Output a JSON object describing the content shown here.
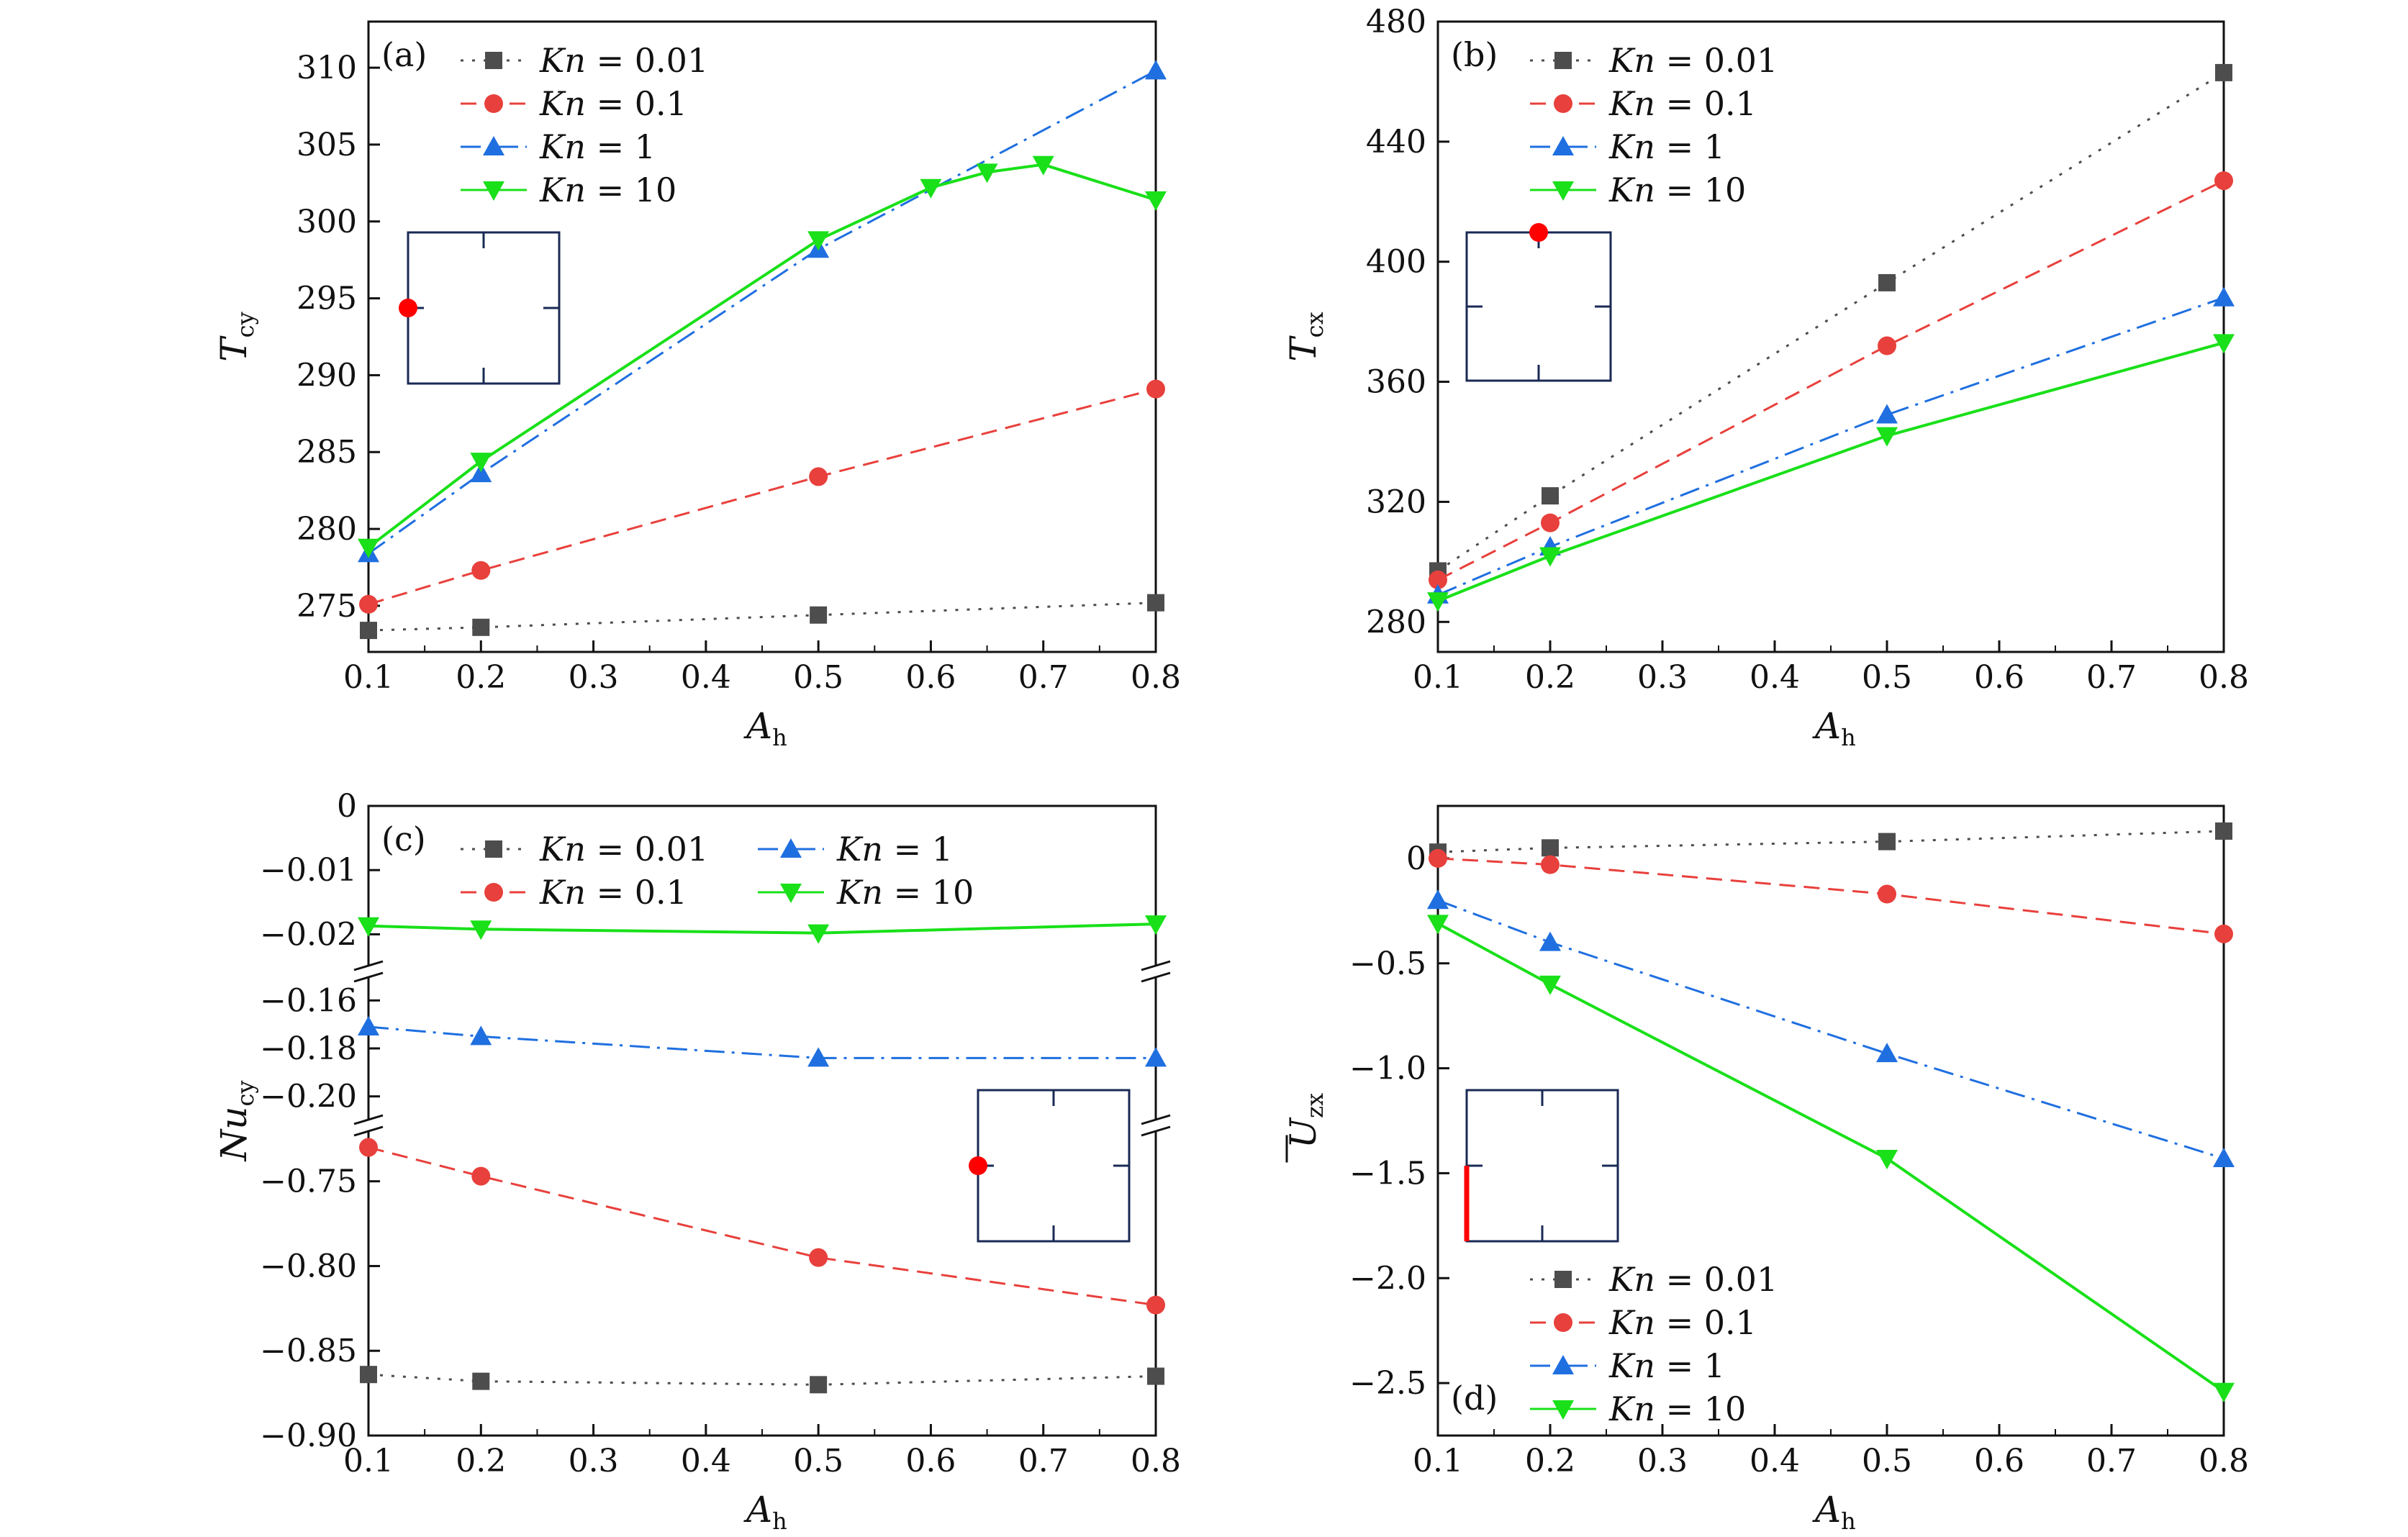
{
  "colors": {
    "kn001": "#4d4d4d",
    "kn01": "#e8403c",
    "kn1": "#1f6fe0",
    "kn10": "#19e019",
    "inset_frame": "#1a2a55",
    "inset_marker": "#ff0000"
  },
  "chart_data": [
    {
      "id": "a",
      "type": "line",
      "panel_label": "(a)",
      "xlabel": "A",
      "xlabel_sub": "h",
      "ylabel": "T",
      "ylabel_sub": "cy",
      "xlim": [
        0.1,
        0.8
      ],
      "ylim": [
        272,
        313
      ],
      "xticks": [
        0.1,
        0.2,
        0.3,
        0.4,
        0.5,
        0.6,
        0.7,
        0.8
      ],
      "xtick_labels": [
        "0.1",
        "0.2",
        "0.3",
        "0.4",
        "0.5",
        "0.6",
        "0.7",
        "0.8"
      ],
      "yticks": [
        275,
        280,
        285,
        290,
        295,
        300,
        305,
        310
      ],
      "ytick_labels": [
        "275",
        "280",
        "285",
        "290",
        "295",
        "300",
        "305",
        "310"
      ],
      "legend_position": "top-left",
      "inset": "left-wall-point",
      "series": [
        {
          "name": "Kn = 0.01",
          "kn_label": "Kn",
          "kn_value": "= 0.01",
          "marker": "square",
          "style": "dotted",
          "color_key": "kn001",
          "x": [
            0.1,
            0.2,
            0.5,
            0.8
          ],
          "y": [
            273.4,
            273.6,
            274.4,
            275.2
          ]
        },
        {
          "name": "Kn = 0.1",
          "kn_label": "Kn",
          "kn_value": "= 0.1",
          "marker": "circle",
          "style": "dashed",
          "color_key": "kn01",
          "x": [
            0.1,
            0.2,
            0.5,
            0.8
          ],
          "y": [
            275.1,
            277.3,
            283.4,
            289.1
          ]
        },
        {
          "name": "Kn = 1",
          "kn_label": "Kn",
          "kn_value": "= 1",
          "marker": "triangle-up",
          "style": "dashdot",
          "color_key": "kn1",
          "x": [
            0.1,
            0.2,
            0.5,
            0.8
          ],
          "y": [
            278.4,
            283.6,
            298.2,
            309.8
          ]
        },
        {
          "name": "Kn = 10",
          "kn_label": "Kn",
          "kn_value": "= 10",
          "marker": "triangle-down",
          "style": "solid",
          "color_key": "kn10",
          "x": [
            0.1,
            0.2,
            0.5,
            0.6,
            0.65,
            0.7,
            0.8
          ],
          "y": [
            278.8,
            284.4,
            298.8,
            302.2,
            303.2,
            303.7,
            301.4
          ]
        }
      ]
    },
    {
      "id": "b",
      "type": "line",
      "panel_label": "(b)",
      "xlabel": "A",
      "xlabel_sub": "h",
      "ylabel": "T",
      "ylabel_sub": "cx",
      "xlim": [
        0.1,
        0.8
      ],
      "ylim": [
        270,
        480
      ],
      "xticks": [
        0.1,
        0.2,
        0.3,
        0.4,
        0.5,
        0.6,
        0.7,
        0.8
      ],
      "xtick_labels": [
        "0.1",
        "0.2",
        "0.3",
        "0.4",
        "0.5",
        "0.6",
        "0.7",
        "0.8"
      ],
      "yticks": [
        280,
        320,
        360,
        400,
        440,
        480
      ],
      "ytick_labels": [
        "280",
        "320",
        "360",
        "400",
        "440",
        "480"
      ],
      "legend_position": "top-left",
      "inset": "top-wall-point",
      "series": [
        {
          "name": "Kn = 0.01",
          "kn_label": "Kn",
          "kn_value": "= 0.01",
          "marker": "square",
          "style": "dotted",
          "color_key": "kn001",
          "x": [
            0.1,
            0.2,
            0.5,
            0.8
          ],
          "y": [
            297,
            322,
            393,
            463
          ]
        },
        {
          "name": "Kn = 0.1",
          "kn_label": "Kn",
          "kn_value": "= 0.1",
          "marker": "circle",
          "style": "dashed",
          "color_key": "kn01",
          "x": [
            0.1,
            0.2,
            0.5,
            0.8
          ],
          "y": [
            294,
            313,
            372,
            427
          ]
        },
        {
          "name": "Kn = 1",
          "kn_label": "Kn",
          "kn_value": "= 1",
          "marker": "triangle-up",
          "style": "dashdot",
          "color_key": "kn1",
          "x": [
            0.1,
            0.2,
            0.5,
            0.8
          ],
          "y": [
            289,
            305,
            349,
            388
          ]
        },
        {
          "name": "Kn = 10",
          "kn_label": "Kn",
          "kn_value": "= 10",
          "marker": "triangle-down",
          "style": "solid",
          "color_key": "kn10",
          "x": [
            0.1,
            0.2,
            0.5,
            0.8
          ],
          "y": [
            287,
            302,
            342,
            373
          ]
        }
      ]
    },
    {
      "id": "c",
      "type": "line",
      "panel_label": "(c)",
      "xlabel": "A",
      "xlabel_sub": "h",
      "ylabel": "Nu",
      "ylabel_sub": "cy",
      "xlim": [
        0.1,
        0.8
      ],
      "broken_y_axis": true,
      "segments": [
        {
          "ylim": [
            -0.025,
            0.0
          ],
          "yticks": [
            0,
            -0.01,
            -0.02
          ],
          "ytick_labels": [
            "0",
            "−0.01",
            "−0.02"
          ]
        },
        {
          "ylim": [
            -0.21,
            -0.15
          ],
          "yticks": [
            -0.16,
            -0.18,
            -0.2
          ],
          "ytick_labels": [
            "−0.16",
            "−0.18",
            "−0.20"
          ]
        },
        {
          "ylim": [
            -0.9,
            -0.72
          ],
          "yticks": [
            -0.75,
            -0.8,
            -0.85,
            -0.9
          ],
          "ytick_labels": [
            "−0.75",
            "−0.80",
            "−0.85",
            "−0.90"
          ]
        }
      ],
      "xticks": [
        0.1,
        0.2,
        0.3,
        0.4,
        0.5,
        0.6,
        0.7,
        0.8
      ],
      "xtick_labels": [
        "0.1",
        "0.2",
        "0.3",
        "0.4",
        "0.5",
        "0.6",
        "0.7",
        "0.8"
      ],
      "legend_position": "top",
      "inset": "left-wall-point",
      "series": [
        {
          "name": "Kn = 0.01",
          "kn_label": "Kn",
          "kn_value": "= 0.01",
          "marker": "square",
          "style": "dotted",
          "color_key": "kn001",
          "segment": 2,
          "x": [
            0.1,
            0.2,
            0.5,
            0.8
          ],
          "y": [
            -0.864,
            -0.868,
            -0.87,
            -0.865
          ]
        },
        {
          "name": "Kn = 0.1",
          "kn_label": "Kn",
          "kn_value": "= 0.1",
          "marker": "circle",
          "style": "dashed",
          "color_key": "kn01",
          "segment": 2,
          "x": [
            0.1,
            0.2,
            0.5,
            0.8
          ],
          "y": [
            -0.73,
            -0.747,
            -0.795,
            -0.823
          ]
        },
        {
          "name": "Kn = 1",
          "kn_label": "Kn",
          "kn_value": "= 1",
          "marker": "triangle-up",
          "style": "dashdot",
          "color_key": "kn1",
          "segment": 1,
          "x": [
            0.1,
            0.2,
            0.5,
            0.8
          ],
          "y": [
            -0.171,
            -0.175,
            -0.184,
            -0.184
          ]
        },
        {
          "name": "Kn = 10",
          "kn_label": "Kn",
          "kn_value": "= 10",
          "marker": "triangle-down",
          "style": "solid",
          "color_key": "kn10",
          "segment": 0,
          "x": [
            0.1,
            0.2,
            0.5,
            0.8
          ],
          "y": [
            -0.0187,
            -0.0192,
            -0.0198,
            -0.0184
          ]
        }
      ]
    },
    {
      "id": "d",
      "type": "line",
      "panel_label": "(d)",
      "xlabel": "A",
      "xlabel_sub": "h",
      "ylabel": "U",
      "ylabel_sub": "zx",
      "ylabel_overline": true,
      "xlim": [
        0.1,
        0.8
      ],
      "ylim": [
        -2.75,
        0.25
      ],
      "xticks": [
        0.1,
        0.2,
        0.3,
        0.4,
        0.5,
        0.6,
        0.7,
        0.8
      ],
      "xtick_labels": [
        "0.1",
        "0.2",
        "0.3",
        "0.4",
        "0.5",
        "0.6",
        "0.7",
        "0.8"
      ],
      "yticks": [
        0,
        -0.5,
        -1.0,
        -1.5,
        -2.0,
        -2.5
      ],
      "ytick_labels": [
        "0",
        "−0.5",
        "−1.0",
        "−1.5",
        "−2.0",
        "−2.5"
      ],
      "legend_position": "bottom-left",
      "inset": "left-wall-lower-segment",
      "series": [
        {
          "name": "Kn = 0.01",
          "kn_label": "Kn",
          "kn_value": "= 0.01",
          "marker": "square",
          "style": "dotted",
          "color_key": "kn001",
          "x": [
            0.1,
            0.2,
            0.5,
            0.8
          ],
          "y": [
            0.03,
            0.05,
            0.08,
            0.13
          ]
        },
        {
          "name": "Kn = 0.1",
          "kn_label": "Kn",
          "kn_value": "= 0.1",
          "marker": "circle",
          "style": "dashed",
          "color_key": "kn01",
          "x": [
            0.1,
            0.2,
            0.5,
            0.8
          ],
          "y": [
            0.0,
            -0.03,
            -0.17,
            -0.36
          ]
        },
        {
          "name": "Kn = 1",
          "kn_label": "Kn",
          "kn_value": "= 1",
          "marker": "triangle-up",
          "style": "dashdot",
          "color_key": "kn1",
          "x": [
            0.1,
            0.2,
            0.5,
            0.8
          ],
          "y": [
            -0.2,
            -0.4,
            -0.93,
            -1.43
          ]
        },
        {
          "name": "Kn = 10",
          "kn_label": "Kn",
          "kn_value": "= 10",
          "marker": "triangle-down",
          "style": "solid",
          "color_key": "kn10",
          "x": [
            0.1,
            0.2,
            0.5,
            0.8
          ],
          "y": [
            -0.31,
            -0.6,
            -1.43,
            -2.54
          ]
        }
      ]
    }
  ]
}
